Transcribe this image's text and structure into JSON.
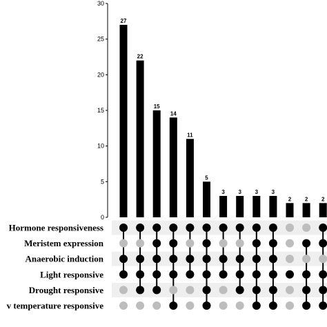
{
  "chart_data": {
    "type": "bar",
    "subtype": "upset",
    "ylim": [
      0,
      30
    ],
    "yticks": [
      0,
      5,
      10,
      15,
      20,
      25,
      30
    ],
    "grid": false,
    "values": [
      27,
      22,
      15,
      14,
      11,
      5,
      3,
      3,
      3,
      3,
      2,
      2,
      2
    ],
    "sets": [
      "Hormone responsiveness",
      "Meristem expression",
      "Anaerobic induction",
      "Light responsive",
      "Drought responsive",
      "v temperature responsive"
    ],
    "membership": [
      [
        1,
        0,
        1,
        1,
        0,
        0
      ],
      [
        1,
        0,
        1,
        1,
        1,
        0
      ],
      [
        1,
        1,
        1,
        1,
        1,
        0
      ],
      [
        1,
        1,
        1,
        1,
        0,
        1
      ],
      [
        1,
        0,
        1,
        1,
        0,
        0
      ],
      [
        1,
        1,
        1,
        1,
        1,
        1
      ],
      [
        1,
        0,
        1,
        1,
        0,
        0
      ],
      [
        1,
        0,
        1,
        1,
        1,
        0
      ],
      [
        1,
        1,
        1,
        1,
        1,
        1
      ],
      [
        1,
        1,
        1,
        1,
        1,
        1
      ],
      [
        0,
        0,
        0,
        1,
        0,
        0
      ],
      [
        0,
        1,
        0,
        1,
        1,
        1
      ],
      [
        1,
        1,
        0,
        1,
        1,
        1
      ]
    ],
    "colors": {
      "bar": "#000000",
      "dot_on": "#000000",
      "dot_off": "#bdbdbd",
      "stripe": "#efefef"
    }
  }
}
